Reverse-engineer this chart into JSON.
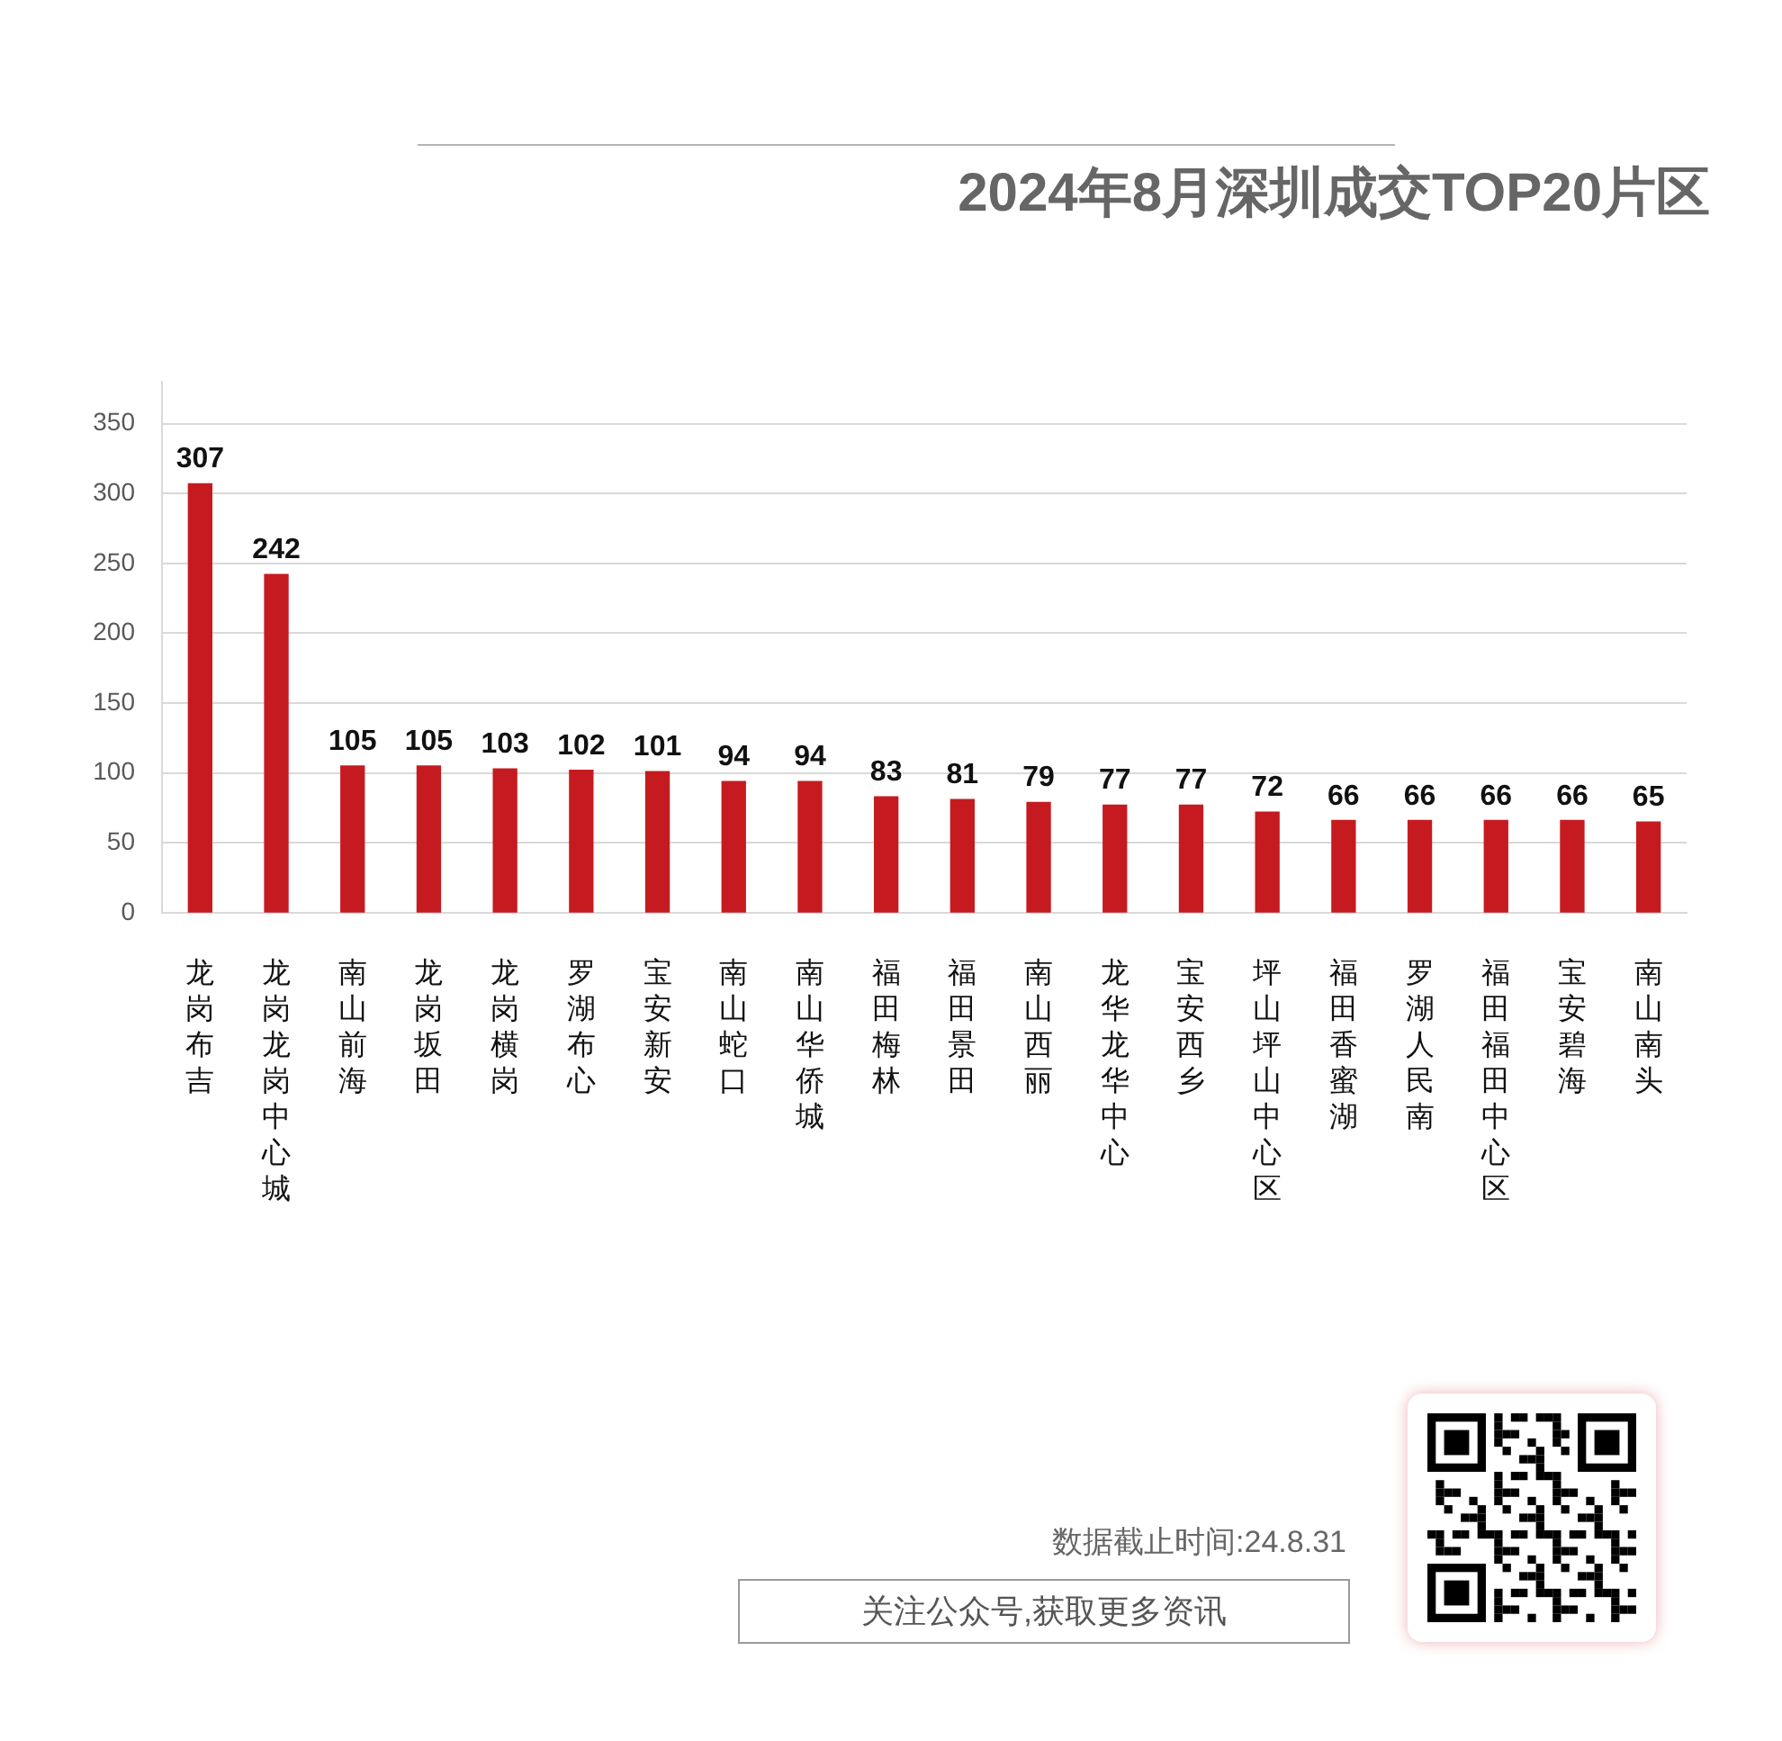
{
  "chart_data": {
    "type": "bar",
    "title": "2024年8月深圳成交TOP20片区",
    "categories": [
      "龙岗布吉",
      "龙岗龙岗中心城",
      "南山前海",
      "龙岗坂田",
      "龙岗横岗",
      "罗湖布心",
      "宝安新安",
      "南山蛇口",
      "南山华侨城",
      "福田梅林",
      "福田景田",
      "南山西丽",
      "龙华龙华中心",
      "宝安西乡",
      "坪山坪山中心区",
      "福田香蜜湖",
      "罗湖人民南",
      "福田福田中心区",
      "宝安碧海",
      "南山南头"
    ],
    "values": [
      307,
      242,
      105,
      105,
      103,
      102,
      101,
      94,
      94,
      83,
      81,
      79,
      77,
      77,
      72,
      66,
      66,
      66,
      66,
      65
    ],
    "color": "#c51b20",
    "ylim": [
      0,
      380
    ],
    "yticks": [
      0,
      50,
      100,
      150,
      200,
      250,
      300,
      350
    ],
    "grid": "y",
    "data_labels": true,
    "annotations": [
      "数据截止时间:24.8.31",
      "关注公众号,获取更多资讯"
    ]
  }
}
